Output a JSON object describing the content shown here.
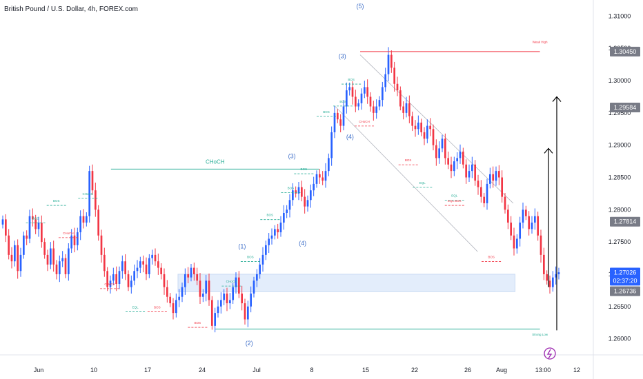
{
  "header": {
    "title": "British Pound / U.S. Dollar, 4h, FOREX.com"
  },
  "colors": {
    "up": "#2962ff",
    "down": "#f23645",
    "bos": "#22ab94",
    "choch_red": "#f23645",
    "wave": "#3f6fc9",
    "zone": "#e3edfb",
    "channel": "#b2b5be",
    "arrow": "#000000",
    "price_tag": "#2962ff",
    "gray_tag": "#787b86",
    "text": "#131722"
  },
  "chart_data": {
    "type": "candlestick",
    "title": "British Pound / U.S. Dollar, 4h, FOREX.com",
    "ylim": [
      1.2575,
      1.3125
    ],
    "y_ticks": [
      "1.31000",
      "1.30500",
      "1.30000",
      "1.29500",
      "1.29000",
      "1.28500",
      "1.28000",
      "1.27500",
      "1.27000",
      "1.26500",
      "1.26000"
    ],
    "x_ticks": [
      "Jun",
      "10",
      "17",
      "24",
      "Jul",
      "8",
      "15",
      "22",
      "26",
      "Aug",
      "13:00",
      "12"
    ],
    "price_tags": [
      {
        "label": "1.30450",
        "value": 1.3045,
        "style": "gray"
      },
      {
        "label": "1.29584",
        "value": 1.29584,
        "style": "gray"
      },
      {
        "label": "1.27814",
        "value": 1.27814,
        "style": "gray"
      },
      {
        "label": "1.27026",
        "value": 1.27026,
        "style": "current"
      },
      {
        "label": "02:37:20",
        "value": 1.269,
        "style": "current"
      },
      {
        "label": "1.26736",
        "value": 1.26736,
        "style": "gray"
      }
    ],
    "close_path": [
      1.2785,
      1.276,
      1.273,
      1.272,
      1.2745,
      1.2705,
      1.273,
      1.276,
      1.2755,
      1.279,
      1.2785,
      1.277,
      1.278,
      1.275,
      1.273,
      1.2715,
      1.274,
      1.2715,
      1.27,
      1.272,
      1.2725,
      1.27,
      1.274,
      1.276,
      1.2745,
      1.2765,
      1.279,
      1.278,
      1.279,
      1.286,
      1.283,
      1.28,
      1.276,
      1.273,
      1.2705,
      1.268,
      1.269,
      1.27,
      1.2685,
      1.2705,
      1.272,
      1.27,
      1.268,
      1.269,
      1.2705,
      1.271,
      1.272,
      1.2715,
      1.27,
      1.2725,
      1.273,
      1.272,
      1.271,
      1.27,
      1.268,
      1.2665,
      1.2655,
      1.264,
      1.266,
      1.2665,
      1.268,
      1.27,
      1.2695,
      1.271,
      1.27,
      1.269,
      1.2665,
      1.267,
      1.269,
      1.266,
      1.262,
      1.264,
      1.265,
      1.266,
      1.267,
      1.2655,
      1.266,
      1.268,
      1.2695,
      1.267,
      1.2655,
      1.263,
      1.265,
      1.267,
      1.269,
      1.27,
      1.2715,
      1.273,
      1.2745,
      1.2755,
      1.276,
      1.277,
      1.2765,
      1.278,
      1.2795,
      1.28,
      1.2815,
      1.283,
      1.2825,
      1.2835,
      1.282,
      1.2805,
      1.2815,
      1.283,
      1.284,
      1.2855,
      1.285,
      1.2845,
      1.286,
      1.288,
      1.292,
      1.295,
      1.294,
      1.293,
      1.296,
      1.2985,
      1.299,
      1.2975,
      1.296,
      1.2965,
      1.298,
      1.299,
      1.2975,
      1.296,
      1.295,
      1.296,
      1.297,
      1.299,
      1.301,
      1.304,
      1.302,
      1.2995,
      1.2985,
      1.296,
      1.295,
      1.2965,
      1.2945,
      1.293,
      1.2925,
      1.2935,
      1.292,
      1.291,
      1.293,
      1.2925,
      1.29,
      1.288,
      1.2895,
      1.291,
      1.288,
      1.287,
      1.286,
      1.2875,
      1.288,
      1.289,
      1.287,
      1.285,
      1.286,
      1.287,
      1.2845,
      1.2835,
      1.282,
      1.281,
      1.284,
      1.2855,
      1.2845,
      1.286,
      1.285,
      1.282,
      1.28,
      1.278,
      1.276,
      1.274,
      1.2755,
      1.278,
      1.28,
      1.279,
      1.277,
      1.278,
      1.279,
      1.276,
      1.273,
      1.27,
      1.269,
      1.268,
      1.2695,
      1.27,
      1.2703
    ],
    "annotations": {
      "waves": [
        {
          "label": "(5)",
          "x": 0.607,
          "y": 1.3112
        },
        {
          "label": "(3)",
          "x": 0.577,
          "y": 1.3035
        },
        {
          "label": "(4)",
          "x": 0.59,
          "y": 1.291
        },
        {
          "label": "(3)",
          "x": 0.492,
          "y": 1.288
        },
        {
          "label": "(1)",
          "x": 0.408,
          "y": 1.274
        },
        {
          "label": "(2)",
          "x": 0.42,
          "y": 1.259
        },
        {
          "label": "(4)",
          "x": 0.51,
          "y": 1.2745
        }
      ],
      "levels": [
        {
          "label": "CHoCH",
          "y": 1.2863,
          "x0": 0.187,
          "x1": 0.538,
          "color": "bos",
          "dashed": false
        },
        {
          "label": "Weak High",
          "y": 1.3045,
          "x0": 0.607,
          "x1": 0.91,
          "color": "choch_red",
          "dashed": false
        },
        {
          "label": "Strong Low",
          "y": 1.2615,
          "x0": 0.363,
          "x1": 0.91,
          "color": "bos",
          "dashed": false
        }
      ],
      "small_labels": [
        {
          "label": "BOS",
          "x": 0.095,
          "y": 1.2812,
          "color": "bos"
        },
        {
          "label": "CHoCH",
          "x": 0.148,
          "y": 1.2823,
          "color": "bos"
        },
        {
          "label": "BOS",
          "x": 0.06,
          "y": 1.2785,
          "color": "bos"
        },
        {
          "label": "CHoCH",
          "x": 0.115,
          "y": 1.2762,
          "color": "choch_red"
        },
        {
          "label": "CHoCH",
          "x": 0.185,
          "y": 1.2683,
          "color": "choch_red"
        },
        {
          "label": "EQL",
          "x": 0.228,
          "y": 1.2647,
          "color": "bos"
        },
        {
          "label": "BOS",
          "x": 0.265,
          "y": 1.2647,
          "color": "choch_red"
        },
        {
          "label": "BOS",
          "x": 0.333,
          "y": 1.2623,
          "color": "choch_red"
        },
        {
          "label": "CHoCH",
          "x": 0.39,
          "y": 1.2687,
          "color": "bos"
        },
        {
          "label": "BOS",
          "x": 0.422,
          "y": 1.2725,
          "color": "bos"
        },
        {
          "label": "BOS",
          "x": 0.455,
          "y": 1.279,
          "color": "bos"
        },
        {
          "label": "BOS",
          "x": 0.49,
          "y": 1.2832,
          "color": "bos"
        },
        {
          "label": "BOS",
          "x": 0.512,
          "y": 1.2861,
          "color": "bos"
        },
        {
          "label": "BOS",
          "x": 0.55,
          "y": 1.295,
          "color": "bos"
        },
        {
          "label": "BOS",
          "x": 0.578,
          "y": 1.2966,
          "color": "bos"
        },
        {
          "label": "BOS",
          "x": 0.592,
          "y": 1.3,
          "color": "bos"
        },
        {
          "label": "CHoCH",
          "x": 0.614,
          "y": 1.2935,
          "color": "choch_red"
        },
        {
          "label": "BOS",
          "x": 0.688,
          "y": 1.2875,
          "color": "choch_red"
        },
        {
          "label": "EQL",
          "x": 0.712,
          "y": 1.284,
          "color": "bos"
        },
        {
          "label": "EQL",
          "x": 0.766,
          "y": 1.282,
          "color": "bos"
        },
        {
          "label": "EQL BOS",
          "x": 0.766,
          "y": 1.2812,
          "color": "choch_red"
        },
        {
          "label": "BOS",
          "x": 0.828,
          "y": 1.2725,
          "color": "choch_red"
        },
        {
          "label": "Weak High",
          "x": 0.91,
          "y": 1.3058,
          "color": "choch_red"
        },
        {
          "label": "Strong Low",
          "x": 0.91,
          "y": 1.2605,
          "color": "bos"
        }
      ],
      "zone": {
        "x0": 0.3,
        "x1": 0.868,
        "y0": 1.27,
        "y1": 1.2673
      }
    }
  }
}
